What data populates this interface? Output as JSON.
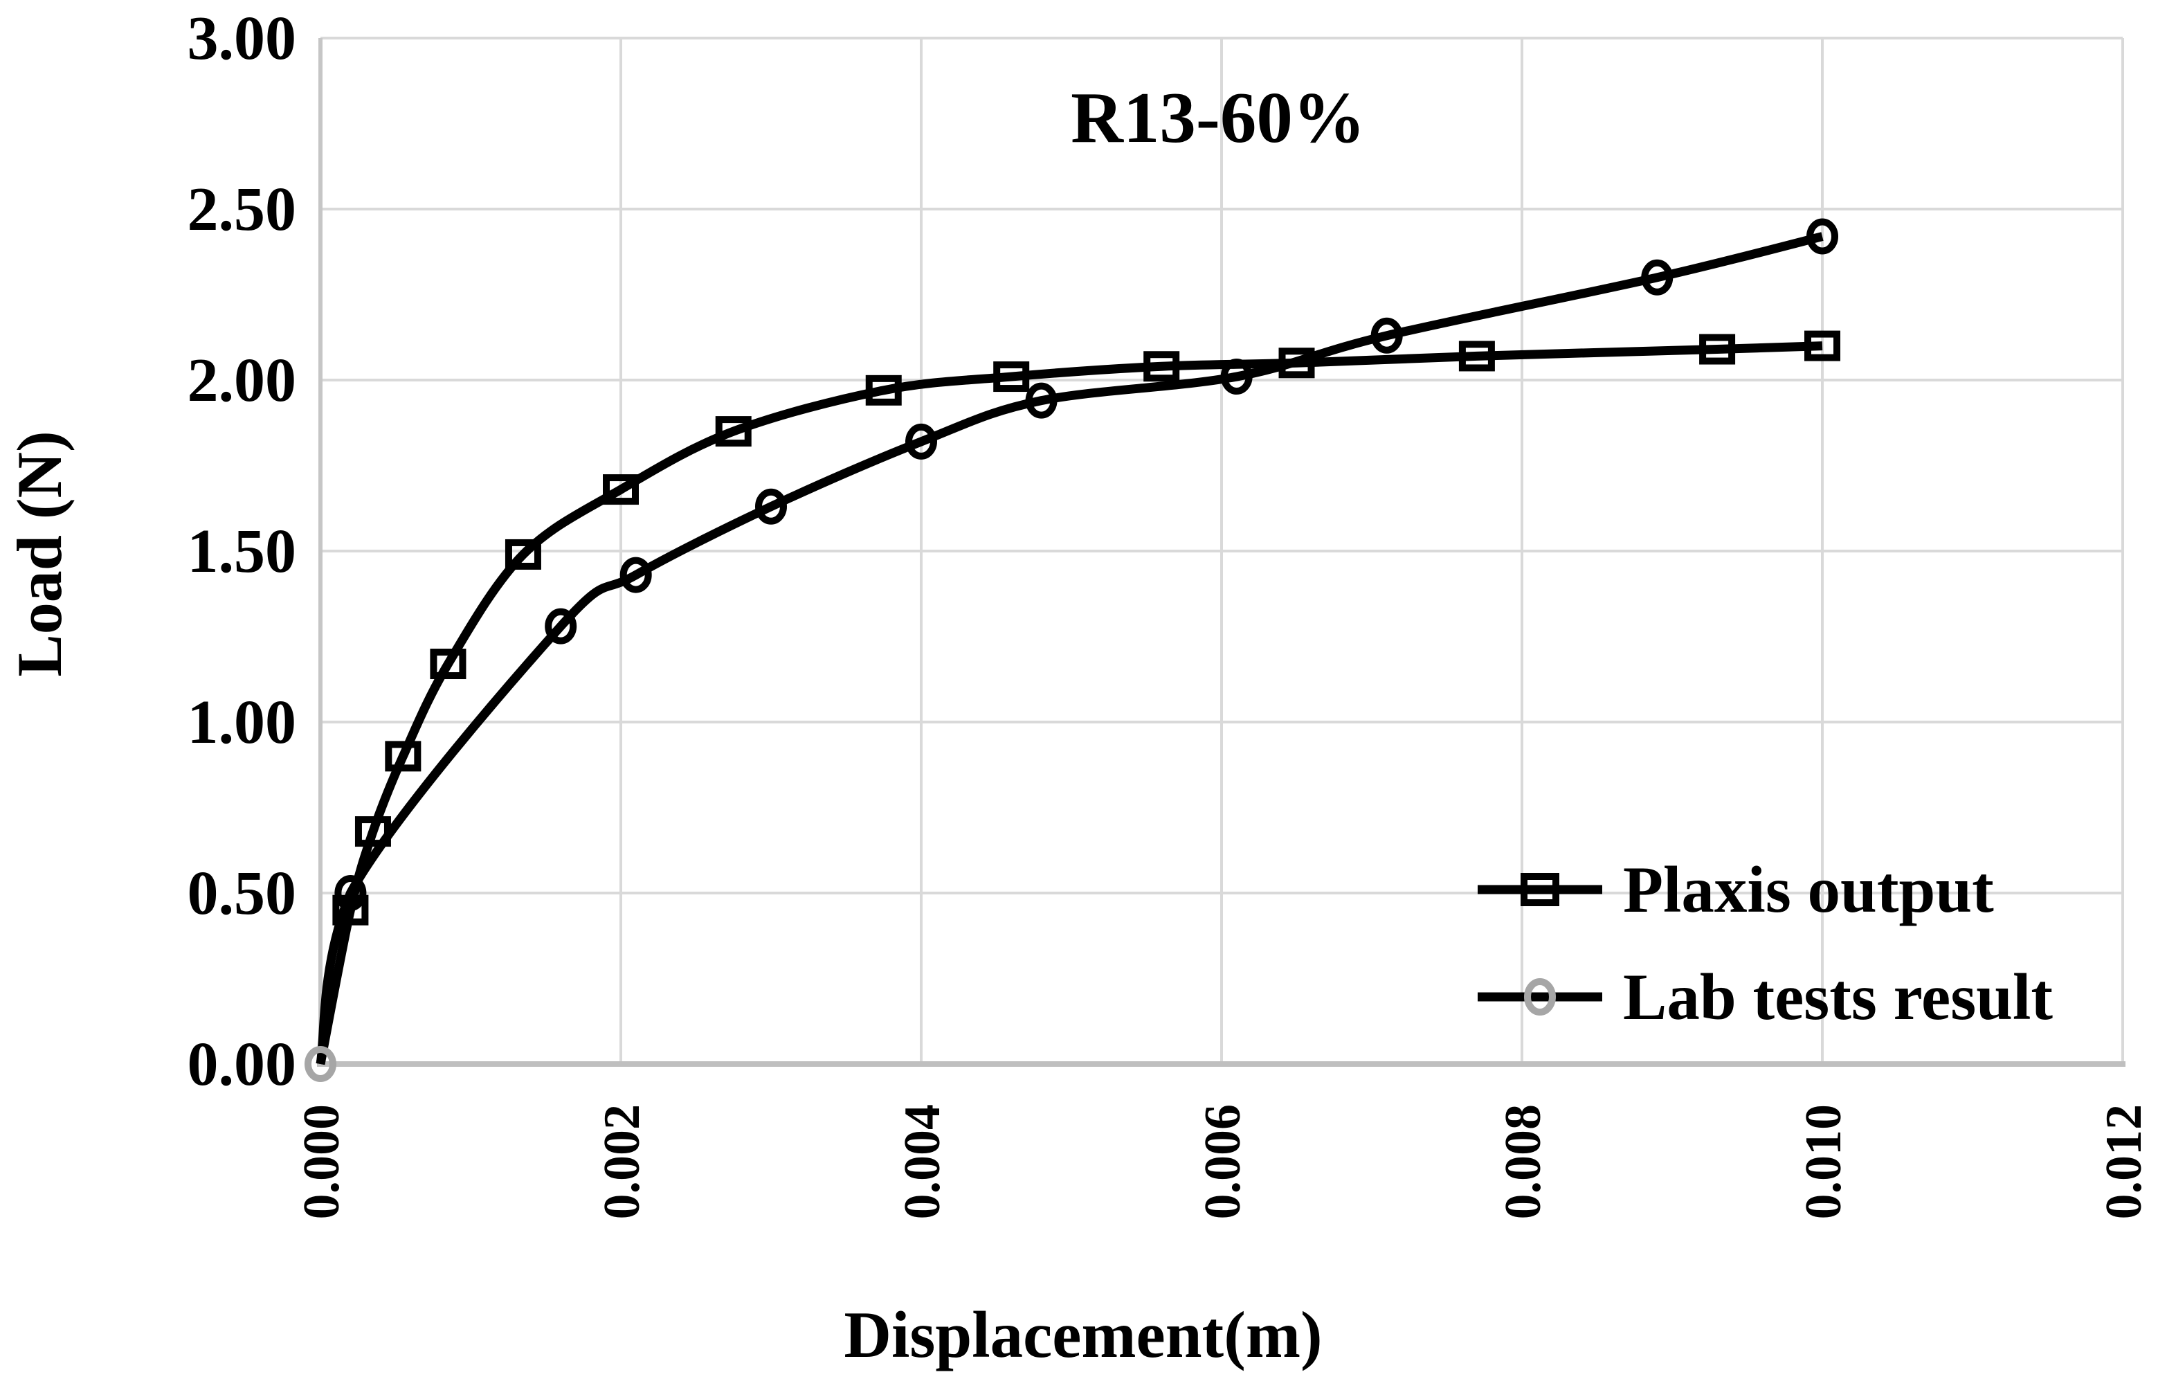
{
  "page": {
    "background": "#ffffff"
  },
  "chart_data": {
    "type": "line",
    "title": "R13-60%",
    "xlabel": "Displacement(m)",
    "ylabel": "Load (N)",
    "xlim": [
      0,
      0.012
    ],
    "ylim": [
      0,
      3
    ],
    "grid": true,
    "legend_position": "inside-lower-right",
    "x_tick_values": [
      0,
      0.002,
      0.004,
      0.006,
      0.008,
      0.01,
      0.012
    ],
    "x_tick_labels": [
      "0.000",
      "0.002",
      "0.004",
      "0.006",
      "0.008",
      "0.010",
      "0.012"
    ],
    "y_tick_values": [
      0,
      0.5,
      1,
      1.5,
      2,
      2.5,
      3
    ],
    "y_tick_labels": [
      "0.00",
      "0.50",
      "1.00",
      "1.50",
      "2.00",
      "2.50",
      "3.00"
    ],
    "series": [
      {
        "name": "Plaxis output",
        "marker": "square",
        "line_color": "#000000",
        "marker_color": "#000000",
        "smooth": true,
        "first_point_marker": false,
        "x": [
          0,
          0.0002,
          0.00035,
          0.00055,
          0.00085,
          0.00135,
          0.002,
          0.00275,
          0.00375,
          0.0046,
          0.0056,
          0.0065,
          0.0077,
          0.0093,
          0.01
        ],
        "y": [
          0,
          0.45,
          0.68,
          0.9,
          1.17,
          1.49,
          1.68,
          1.85,
          1.97,
          2.01,
          2.04,
          2.05,
          2.07,
          2.09,
          2.1
        ]
      },
      {
        "name": "Lab tests result",
        "marker": "circle",
        "line_color": "#000000",
        "marker_color": "#000000",
        "first_marker_color": "#a6a6a6",
        "smooth": true,
        "first_point_marker": true,
        "x": [
          0,
          0.0002,
          0.0016,
          0.0021,
          0.003,
          0.004,
          0.0048,
          0.0061,
          0.0071,
          0.0089,
          0.01
        ],
        "y": [
          0,
          0.5,
          1.28,
          1.43,
          1.63,
          1.82,
          1.94,
          2.01,
          2.13,
          2.3,
          2.42
        ]
      }
    ],
    "colors": {
      "series_line": "#000000",
      "gridline": "#d9d9d9",
      "axis_line": "#bfbfbf",
      "text": "#000000",
      "legend_circle_marker": "#a6a6a6",
      "background": "#ffffff"
    }
  }
}
